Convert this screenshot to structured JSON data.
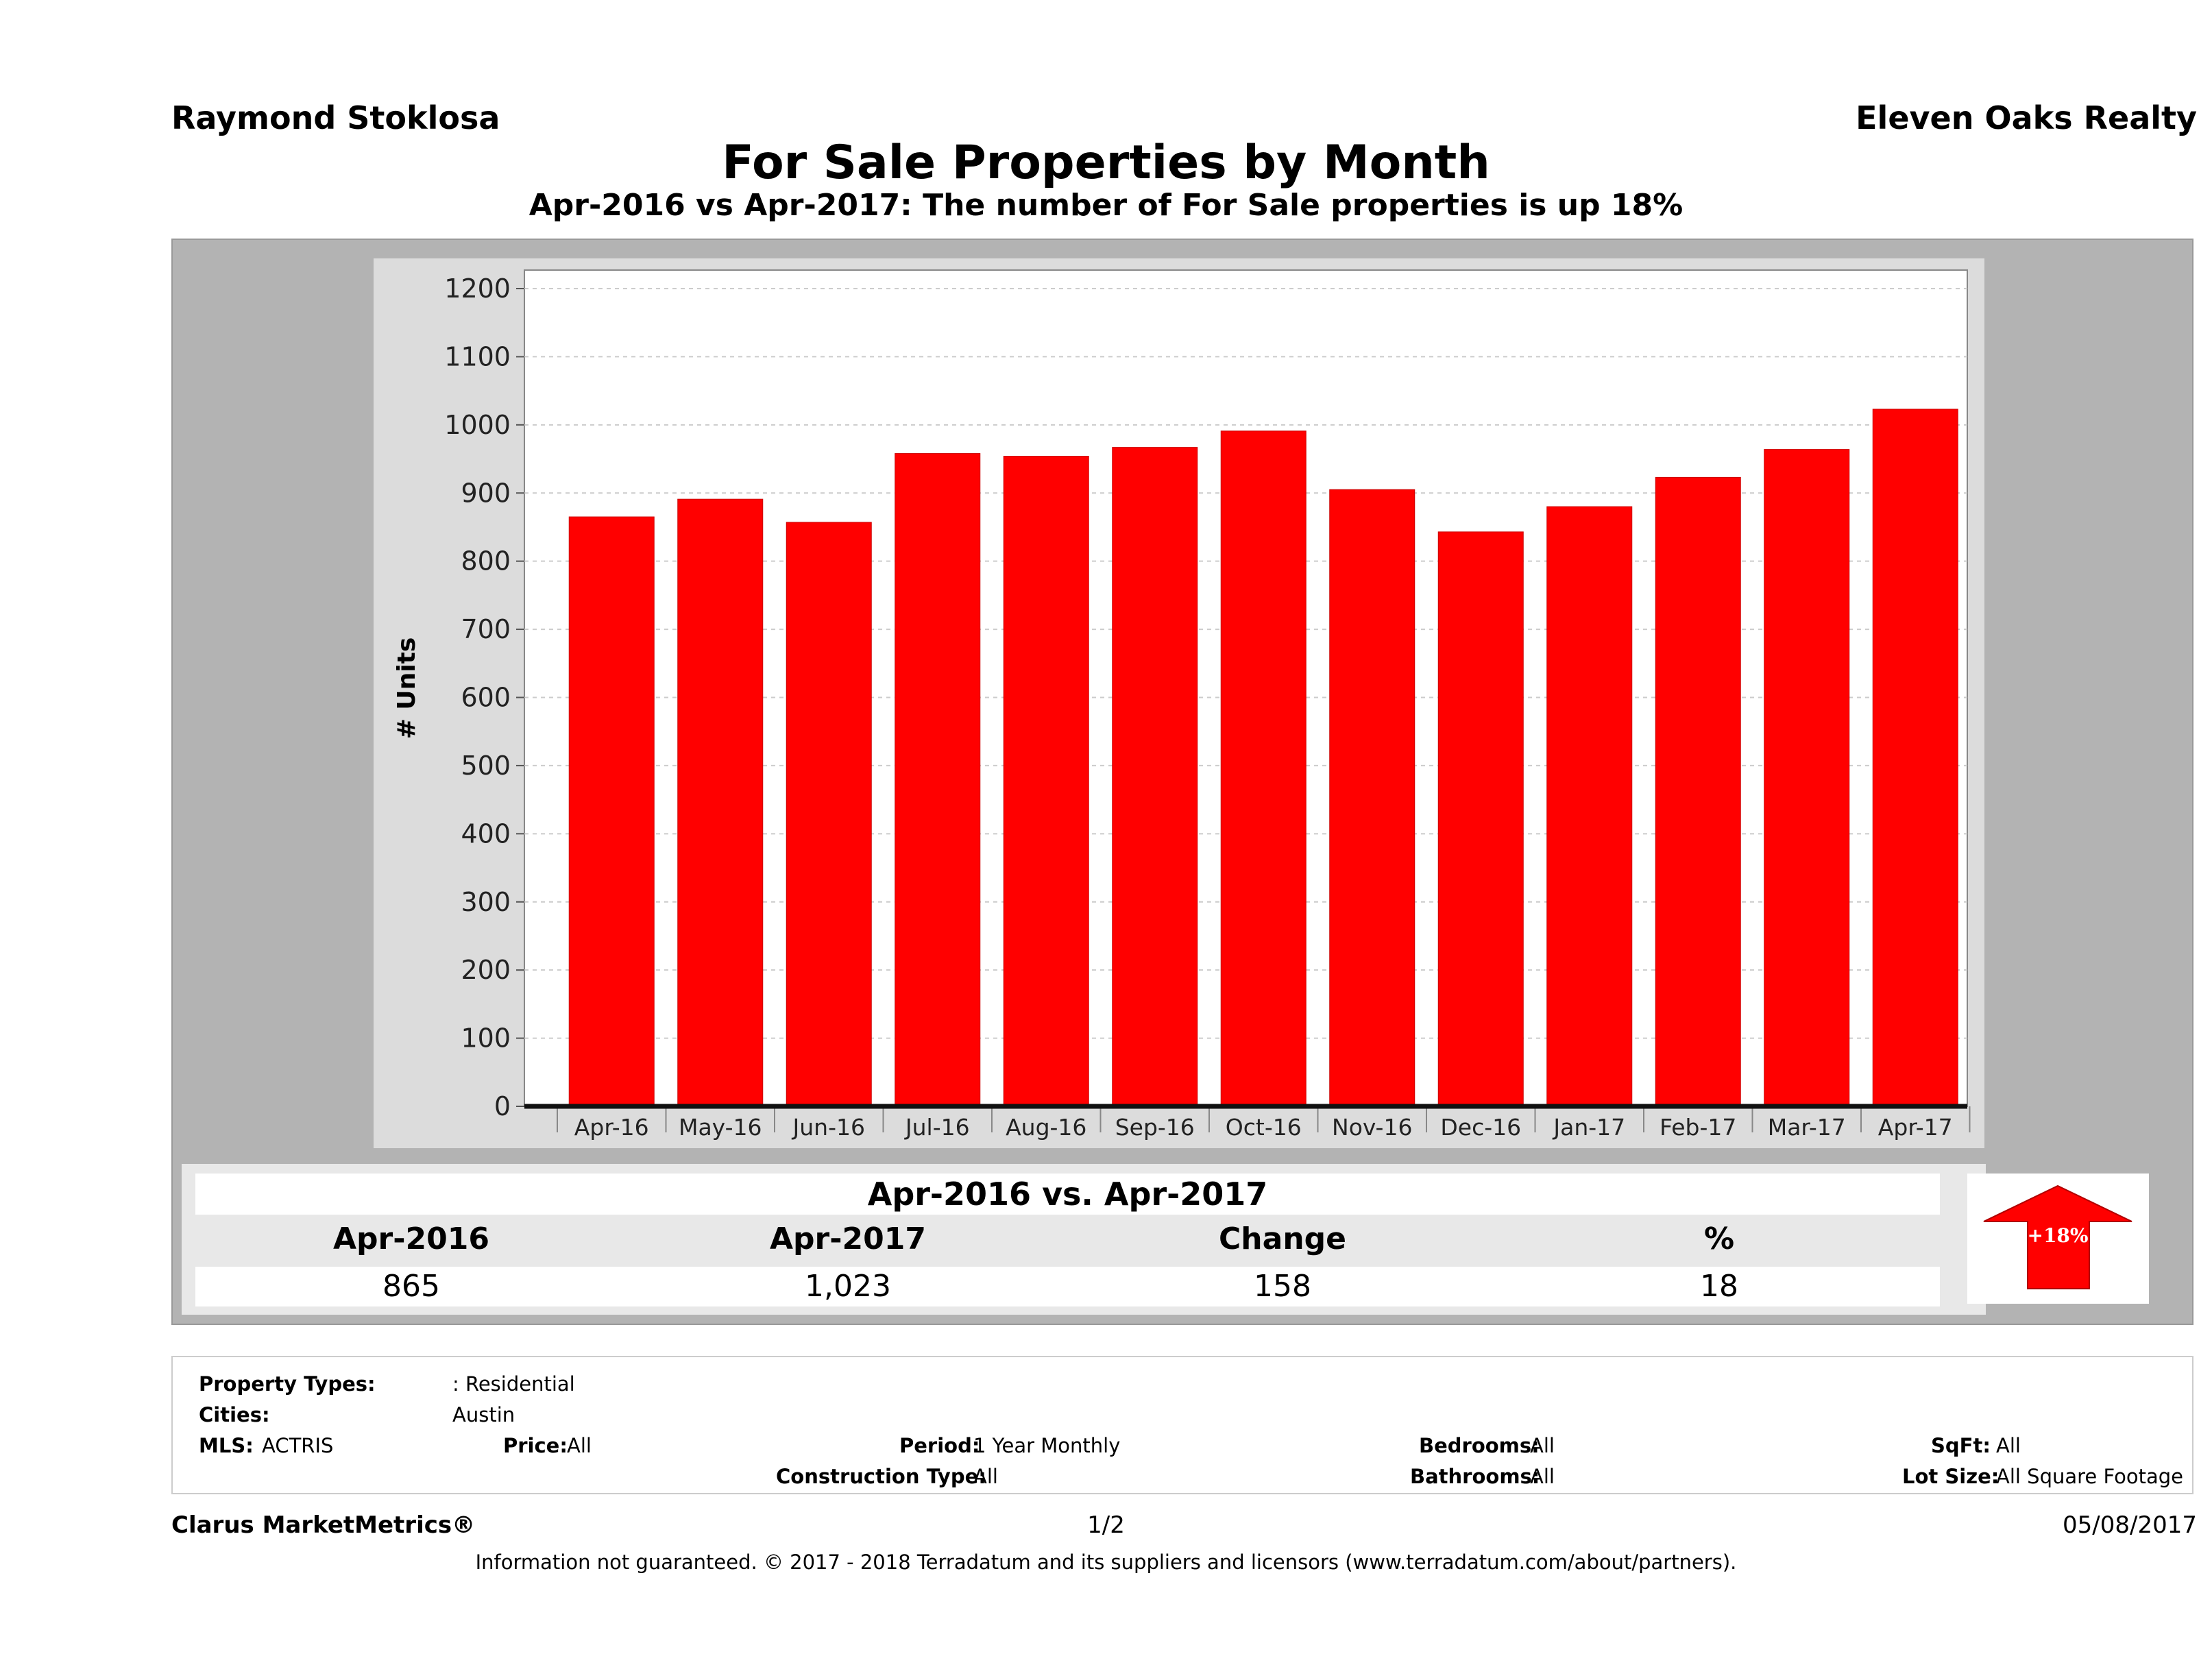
{
  "header": {
    "agent": "Raymond Stoklosa",
    "brokerage": "Eleven Oaks Realty",
    "title": "For Sale Properties by Month",
    "subtitle": "Apr-2016 vs Apr-2017: The number of For Sale  properties is up 18%"
  },
  "colors": {
    "bar": "#ff0000",
    "frame": "#b3b3b3",
    "panel": "#dcdcdc"
  },
  "chart_data": {
    "type": "bar",
    "title": "",
    "xlabel": "",
    "ylabel": "# Units",
    "categories": [
      "Apr-16",
      "May-16",
      "Jun-16",
      "Jul-16",
      "Aug-16",
      "Sep-16",
      "Oct-16",
      "Nov-16",
      "Dec-16",
      "Jan-17",
      "Feb-17",
      "Mar-17",
      "Apr-17"
    ],
    "values": [
      865,
      891,
      857,
      958,
      954,
      967,
      991,
      905,
      843,
      880,
      923,
      964,
      1023
    ],
    "ylim": [
      0,
      1200
    ],
    "yticks": [
      0,
      100,
      200,
      300,
      400,
      500,
      600,
      700,
      800,
      900,
      1000,
      1100,
      1200
    ],
    "grid": true,
    "legend": "none"
  },
  "summary": {
    "title": "Apr-2016 vs. Apr-2017",
    "headers": [
      "Apr-2016",
      "Apr-2017",
      "Change",
      "%"
    ],
    "values": [
      "865",
      "1,023",
      "158",
      "18"
    ],
    "badge": "+18%",
    "badge_icon": "up-arrow-icon"
  },
  "details": {
    "property_types_label": "Property Types:",
    "property_types_value": ": Residential",
    "cities_label": "Cities:",
    "cities_value": "Austin",
    "mls_label": "MLS:",
    "mls_value": "ACTRIS",
    "price_label": "Price:",
    "price_value": "All",
    "period_label": "Period:",
    "period_value": "1 Year Monthly",
    "construction_label": "Construction Type:",
    "construction_value": "All",
    "bedrooms_label": "Bedrooms:",
    "bedrooms_value": "All",
    "bathrooms_label": "Bathrooms:",
    "bathrooms_value": "All",
    "sqft_label": "SqFt:",
    "sqft_value": "All",
    "lotsize_label": "Lot Size:",
    "lotsize_value": "All Square Footage"
  },
  "footer": {
    "product": "Clarus MarketMetrics®",
    "page": "1/2",
    "date": "05/08/2017",
    "disclaimer": "Information not guaranteed. © 2017 - 2018 Terradatum and its suppliers and licensors (www.terradatum.com/about/partners)."
  }
}
